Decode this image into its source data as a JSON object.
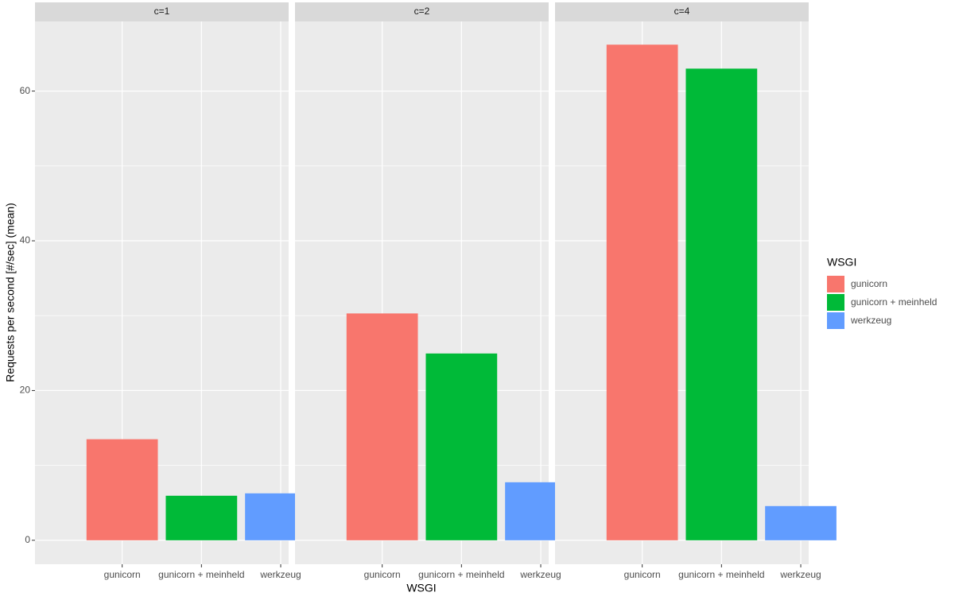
{
  "chart_data": {
    "type": "bar",
    "x_label": "WSGI",
    "y_label": "Requests per second  [#/sec] (mean)",
    "legend_title": "WSGI",
    "legend_position": "right",
    "categories": [
      "gunicorn",
      "gunicorn + meinheld",
      "werkzeug"
    ],
    "colors": [
      "#f8766d",
      "#00ba38",
      "#619cff"
    ],
    "facets": [
      {
        "title": "c=1",
        "values": [
          13.5,
          5.95,
          6.27
        ]
      },
      {
        "title": "c=2",
        "values": [
          30.3,
          24.95,
          7.75
        ]
      },
      {
        "title": "c=4",
        "values": [
          66.2,
          63.0,
          4.57
        ]
      }
    ],
    "ylim": [
      -3.2,
      69.3
    ],
    "yticks": [
      0,
      20,
      40,
      60
    ],
    "minor_yticks": [
      10,
      30,
      50
    ],
    "grid": true
  }
}
